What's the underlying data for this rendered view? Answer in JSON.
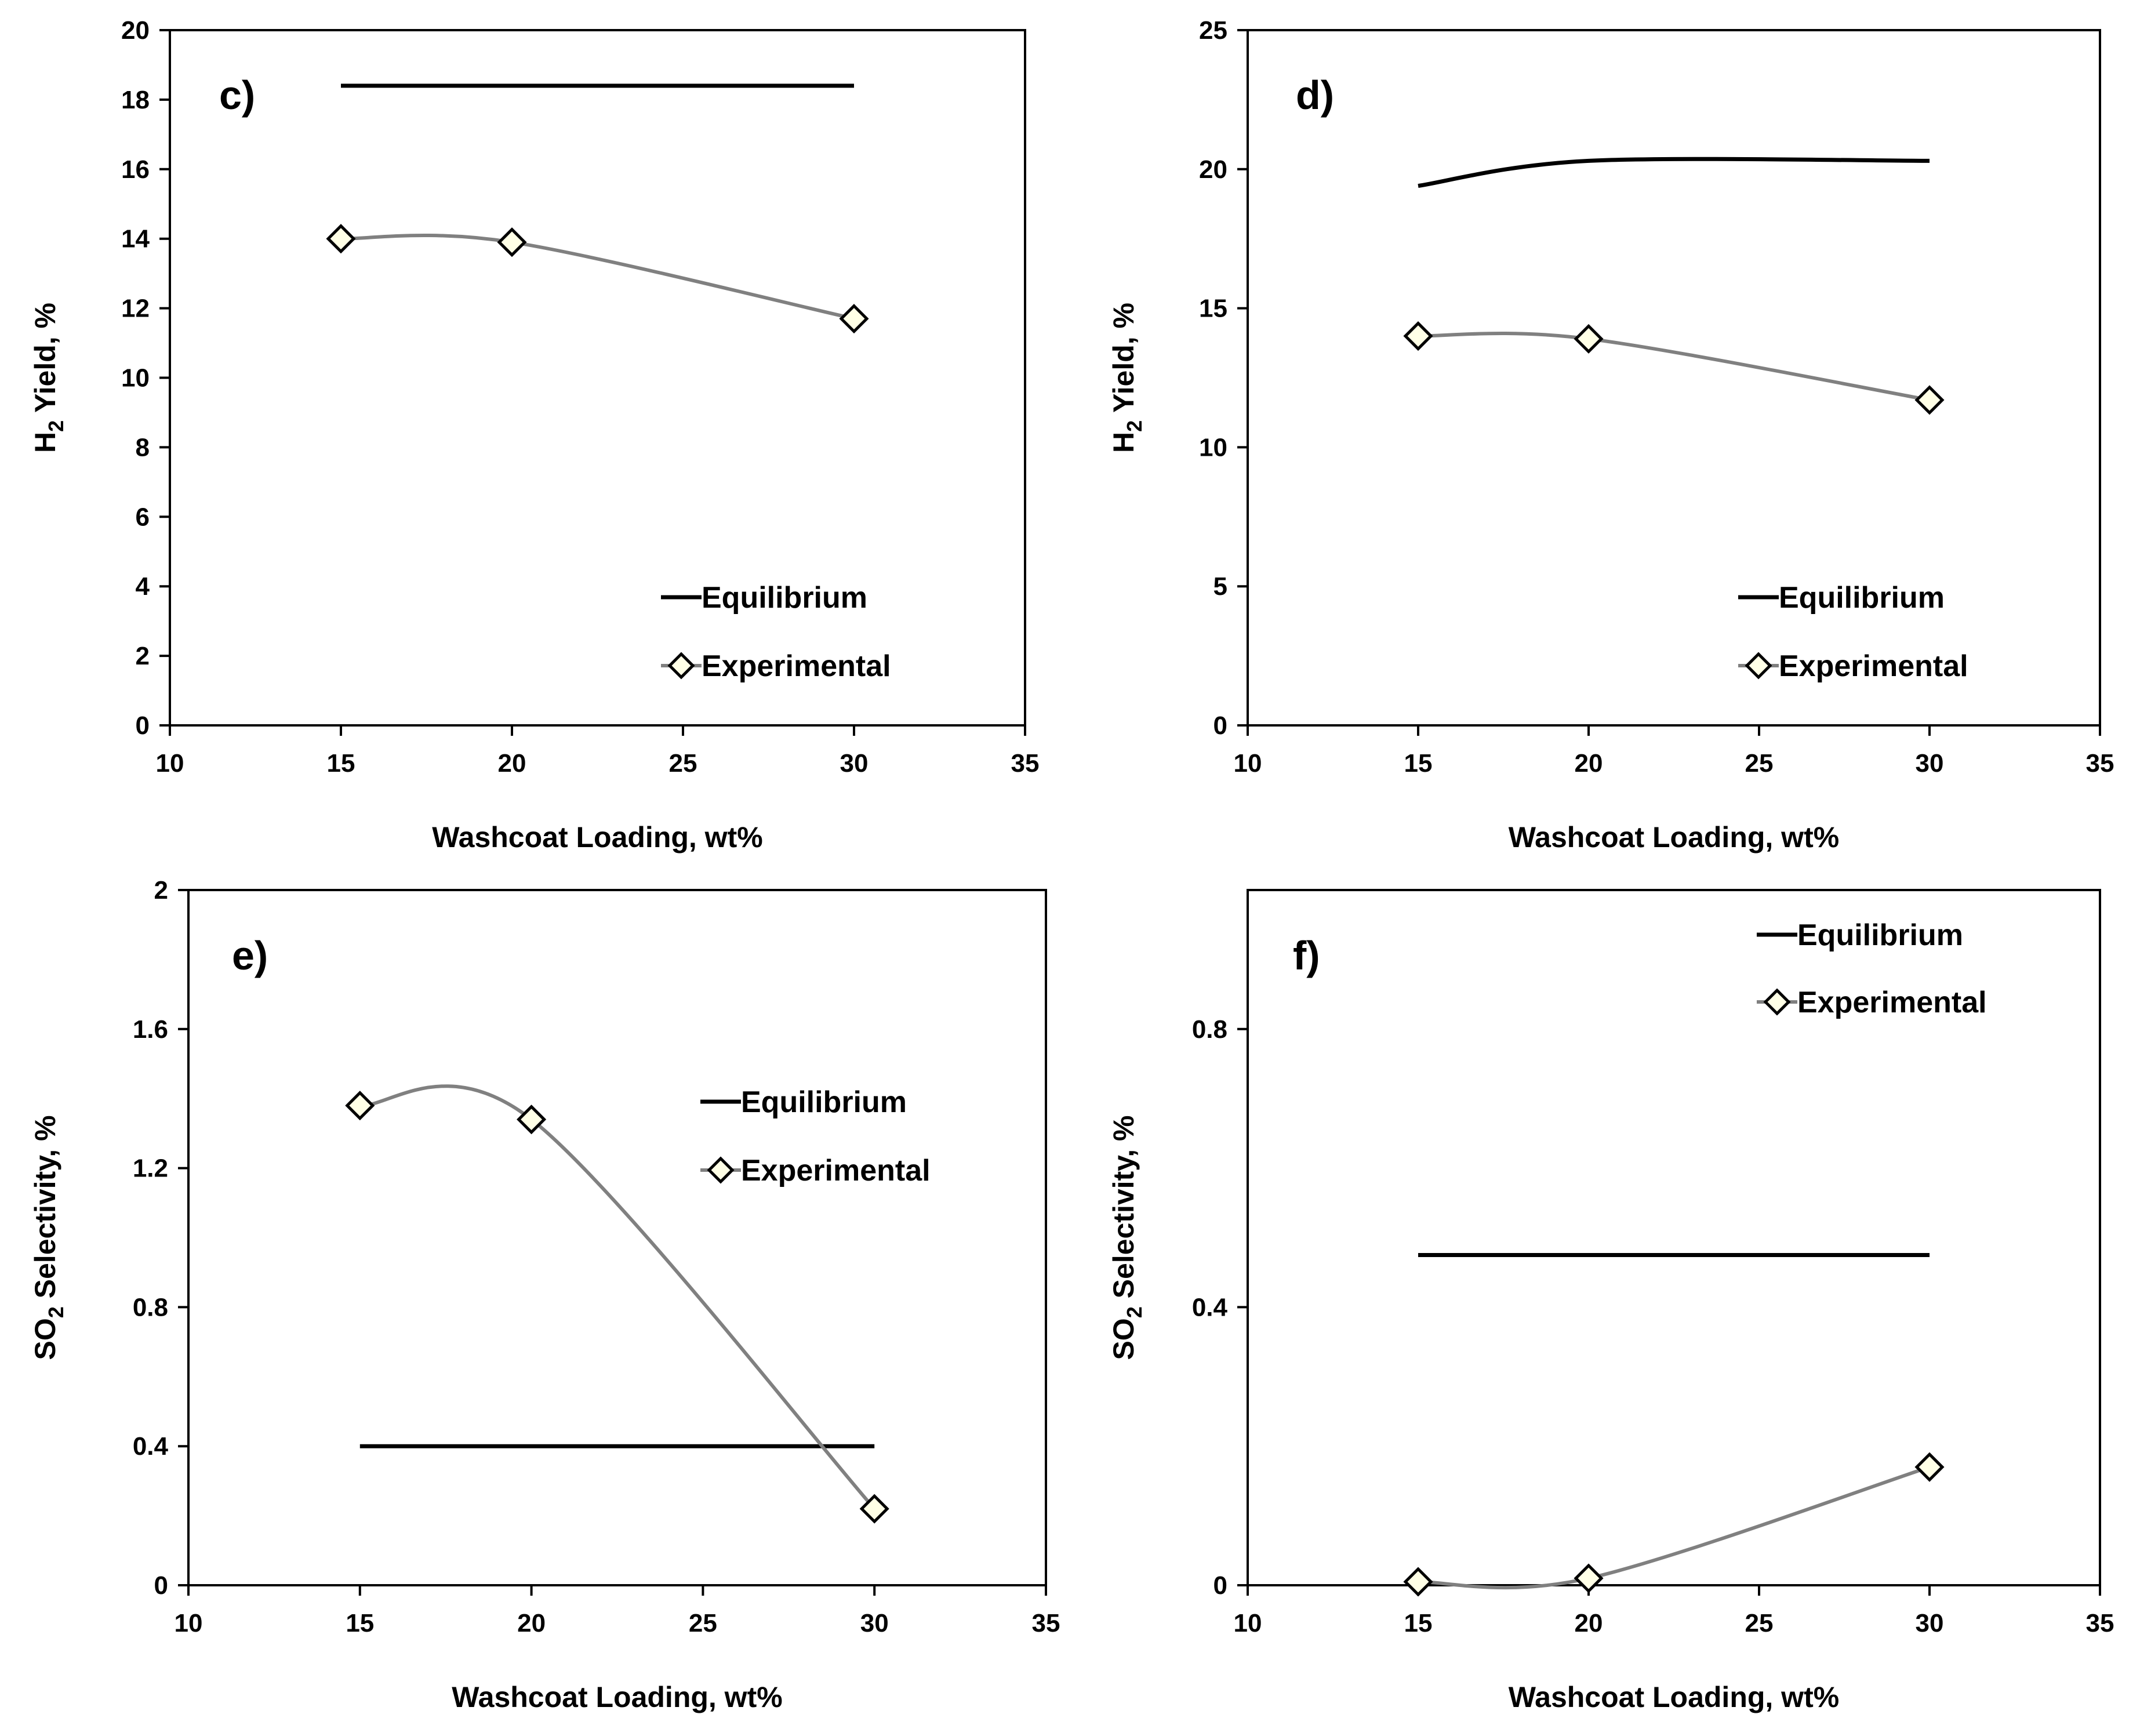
{
  "colors": {
    "equilibrium": "#000000",
    "experimental_line": "#808080",
    "marker_fill": "#ffffe6",
    "frame": "#000000",
    "background": "#ffffff"
  },
  "chart_data": [
    {
      "panel": "c)",
      "type": "line",
      "xlabel": "Washcoat  Loading, wt%",
      "ylabel_main": "H",
      "ylabel_sub": "2",
      "ylabel_rest": " Yield, %",
      "xlim": [
        10,
        35
      ],
      "ylim": [
        0,
        20
      ],
      "xticks": [
        "10",
        "15",
        "20",
        "25",
        "30",
        "35"
      ],
      "yticks": [
        "0",
        "2",
        "4",
        "6",
        "8",
        "10",
        "12",
        "14",
        "16",
        "18",
        "20"
      ],
      "legend": {
        "position": "bottom-right",
        "entries": [
          "Equilibrium",
          "Experimental"
        ]
      },
      "series": [
        {
          "name": "Equilibrium",
          "x": [
            15,
            30
          ],
          "y": [
            18.4,
            18.4
          ]
        },
        {
          "name": "Experimental",
          "x": [
            15,
            20,
            30
          ],
          "y": [
            14.0,
            13.9,
            11.7
          ],
          "markers": true
        }
      ]
    },
    {
      "panel": "d)",
      "type": "line",
      "xlabel": "Washcoat  Loading, wt%",
      "ylabel_main": "H",
      "ylabel_sub": "2",
      "ylabel_rest": " Yield, %",
      "xlim": [
        10,
        35
      ],
      "ylim": [
        0,
        25
      ],
      "xticks": [
        "10",
        "15",
        "20",
        "25",
        "30",
        "35"
      ],
      "yticks": [
        "0",
        "5",
        "10",
        "15",
        "20",
        "25"
      ],
      "legend": {
        "position": "bottom-right",
        "entries": [
          "Equilibrium",
          "Experimental"
        ]
      },
      "series": [
        {
          "name": "Equilibrium",
          "x": [
            15,
            20,
            30
          ],
          "y": [
            19.4,
            20.3,
            20.3
          ]
        },
        {
          "name": "Experimental",
          "x": [
            15,
            20,
            30
          ],
          "y": [
            14.0,
            13.9,
            11.7
          ],
          "markers": true
        }
      ]
    },
    {
      "panel": "e)",
      "type": "line",
      "xlabel": "Washcoat  Loading, wt%",
      "ylabel_main": "SO",
      "ylabel_sub": "2",
      "ylabel_rest": " Selectivity, %",
      "xlim": [
        10,
        35
      ],
      "ylim": [
        0,
        2
      ],
      "xticks": [
        "10",
        "15",
        "20",
        "25",
        "30",
        "35"
      ],
      "yticks": [
        "0",
        "0.4",
        "0.8",
        "1.2",
        "1.6",
        "2"
      ],
      "legend": {
        "position": "center-right",
        "entries": [
          "Equilibrium",
          "Experimental"
        ]
      },
      "series": [
        {
          "name": "Equilibrium",
          "x": [
            15,
            30
          ],
          "y": [
            0.4,
            0.4
          ]
        },
        {
          "name": "Experimental",
          "x": [
            15,
            20,
            30
          ],
          "y": [
            1.38,
            1.34,
            0.22
          ],
          "markers": true
        }
      ]
    },
    {
      "panel": "f)",
      "type": "line",
      "xlabel": "Washcoat  Loading, wt%",
      "ylabel_main": "SO",
      "ylabel_sub": "2",
      "ylabel_rest": " Selectivity, %",
      "xlim": [
        10,
        35
      ],
      "ylim": [
        0,
        1
      ],
      "xticks": [
        "10",
        "15",
        "20",
        "25",
        "30",
        "35"
      ],
      "yticks": [
        "0",
        "0.4",
        "0.8"
      ],
      "legend": {
        "position": "top-right",
        "entries": [
          "Equilibrium",
          "Experimental"
        ]
      },
      "series": [
        {
          "name": "Equilibrium",
          "x": [
            15,
            30
          ],
          "y": [
            0.475,
            0.475
          ]
        },
        {
          "name": "Experimental",
          "x": [
            15,
            20,
            30
          ],
          "y": [
            0.005,
            0.01,
            0.17
          ],
          "markers": true
        }
      ]
    }
  ]
}
